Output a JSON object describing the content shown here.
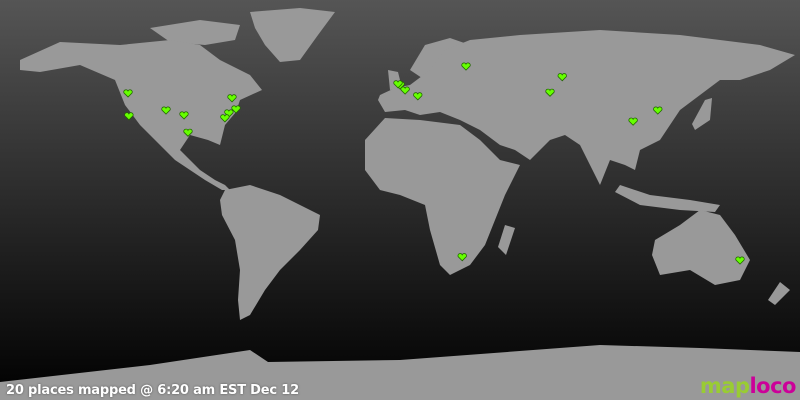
{
  "map": {
    "projection": "equirectangular",
    "colors": {
      "land": "#999999",
      "ocean_top": "#555555",
      "ocean_bottom": "#000000",
      "marker": "#66ff00"
    },
    "marker_icon": "heart-icon",
    "places": [
      {
        "lon": -122.4,
        "lat": 47.7
      },
      {
        "lon": -122.0,
        "lat": 37.4
      },
      {
        "lon": -105.3,
        "lat": 40.0
      },
      {
        "lon": -97.2,
        "lat": 37.8
      },
      {
        "lon": -95.4,
        "lat": 30.0
      },
      {
        "lon": -75.6,
        "lat": 45.5
      },
      {
        "lon": -73.8,
        "lat": 40.5
      },
      {
        "lon": -77.0,
        "lat": 38.7
      },
      {
        "lon": -78.8,
        "lat": 36.5
      },
      {
        "lon": 0.0,
        "lat": 51.3
      },
      {
        "lon": -0.9,
        "lat": 51.8
      },
      {
        "lon": 2.3,
        "lat": 49.0
      },
      {
        "lon": 8.0,
        "lat": 46.4
      },
      {
        "lon": 29.7,
        "lat": 59.8
      },
      {
        "lon": 73.0,
        "lat": 55.0
      },
      {
        "lon": 67.5,
        "lat": 48.0
      },
      {
        "lon": 104.9,
        "lat": 35.0
      },
      {
        "lon": 116.0,
        "lat": 40.0
      },
      {
        "lon": 28.0,
        "lat": -26.0
      },
      {
        "lon": 153.0,
        "lat": -27.5
      }
    ]
  },
  "caption": "20 places mapped @ 6:20 am EST Dec 12",
  "logo": {
    "part1": "map",
    "part2": "loco"
  }
}
